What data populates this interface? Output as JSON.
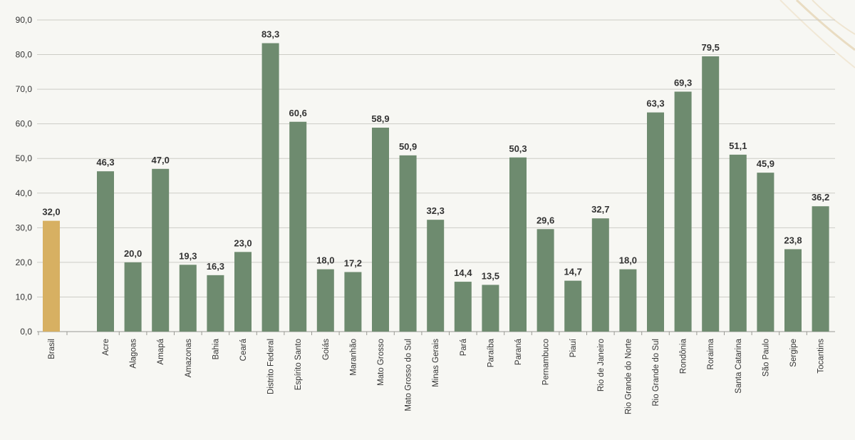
{
  "chart_data": {
    "type": "bar",
    "categories": [
      "Brasil",
      "Acre",
      "Alagoas",
      "Amapá",
      "Amazonas",
      "Bahia",
      "Ceará",
      "Distrito Federal",
      "Espírito Santo",
      "Goiás",
      "Maranhão",
      "Mato Grosso",
      "Mato Grosso do Sul",
      "Minas Gerais",
      "Pará",
      "Paraíba",
      "Paraná",
      "Pernambuco",
      "Piauí",
      "Rio de Janeiro",
      "Rio Grande do Norte",
      "Rio Grande do Sul",
      "Rondônia",
      "Roraima",
      "Santa Catarina",
      "São Paulo",
      "Sergipe",
      "Tocantins"
    ],
    "values": [
      32.0,
      46.3,
      20.0,
      47.0,
      19.3,
      16.3,
      23.0,
      83.3,
      60.6,
      18.0,
      17.2,
      58.9,
      50.9,
      32.3,
      14.4,
      13.5,
      50.3,
      29.6,
      14.7,
      32.7,
      18.0,
      63.3,
      69.3,
      79.5,
      51.1,
      45.9,
      23.8,
      36.2
    ],
    "value_labels": [
      "32,0",
      "46,3",
      "20,0",
      "47,0",
      "19,3",
      "16,3",
      "23,0",
      "83,3",
      "60,6",
      "18,0",
      "17,2",
      "58,9",
      "50,9",
      "32,3",
      "14,4",
      "13,5",
      "50,3",
      "29,6",
      "14,7",
      "32,7",
      "18,0",
      "63,3",
      "69,3",
      "79,5",
      "51,1",
      "45,9",
      "23,8",
      "36,2"
    ],
    "highlight_category": "Brasil",
    "y_ticks": [
      "0,0",
      "10,0",
      "20,0",
      "30,0",
      "40,0",
      "50,0",
      "60,0",
      "70,0",
      "80,0",
      "90,0"
    ],
    "ylim": [
      0,
      90
    ],
    "title": "",
    "xlabel": "",
    "ylabel": "",
    "grid": true,
    "legend": "none",
    "colors": {
      "bar": "#6e8b6f",
      "highlight": "#d7b062",
      "grid": "#cdcdc6",
      "text": "#333333",
      "background": "#f7f7f3",
      "decoration": "#e9dcc2"
    }
  }
}
